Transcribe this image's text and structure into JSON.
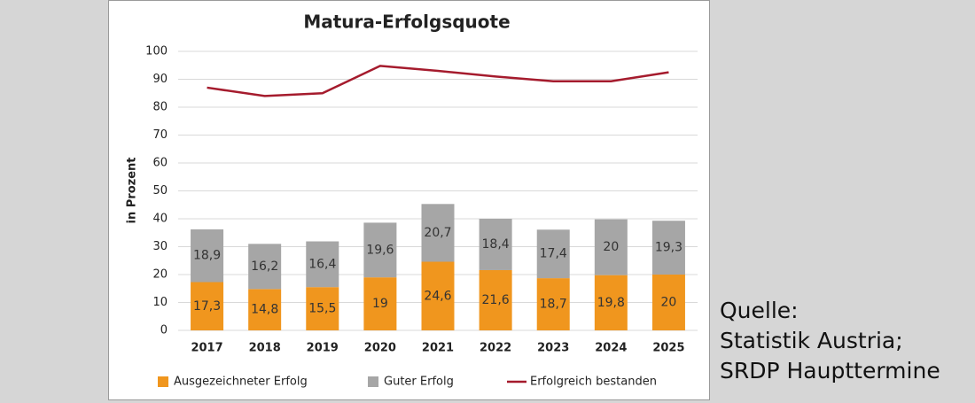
{
  "chart_data": {
    "type": "bar",
    "title": "Matura-Erfolgsquote",
    "y_label": "in Prozent",
    "categories": [
      "2017",
      "2018",
      "2019",
      "2020",
      "2021",
      "2022",
      "2023",
      "2024",
      "2025"
    ],
    "series": [
      {
        "name": "Ausgezeichneter Erfolg",
        "color": "#f0961e",
        "type": "bar",
        "values": [
          17.3,
          14.8,
          15.5,
          19,
          24.6,
          21.6,
          18.7,
          19.8,
          20
        ],
        "value_labels": [
          "17,3",
          "14,8",
          "15,5",
          "19",
          "24,6",
          "21,6",
          "18,7",
          "19,8",
          "20"
        ]
      },
      {
        "name": "Guter Erfolg",
        "color": "#a6a6a6",
        "type": "bar",
        "values": [
          18.9,
          16.2,
          16.4,
          19.6,
          20.7,
          18.4,
          17.4,
          20,
          19.3
        ],
        "value_labels": [
          "18,9",
          "16,2",
          "16,4",
          "19,6",
          "20,7",
          "18,4",
          "17,4",
          "20",
          "19,3"
        ]
      },
      {
        "name": "Erfolgreich bestanden",
        "color": "#a51b2d",
        "type": "line",
        "values": [
          87,
          84,
          85,
          94.8,
          93,
          91,
          89.3,
          89.3,
          92.5
        ]
      }
    ],
    "ylim": [
      0,
      100
    ],
    "yticks": [
      0,
      10,
      20,
      30,
      40,
      50,
      60,
      70,
      80,
      90,
      100
    ],
    "grid": true,
    "legend": "bottom"
  },
  "source_note": {
    "lines": [
      "Quelle:",
      "Statistik Austria;",
      "SRDP Haupttermine"
    ]
  }
}
